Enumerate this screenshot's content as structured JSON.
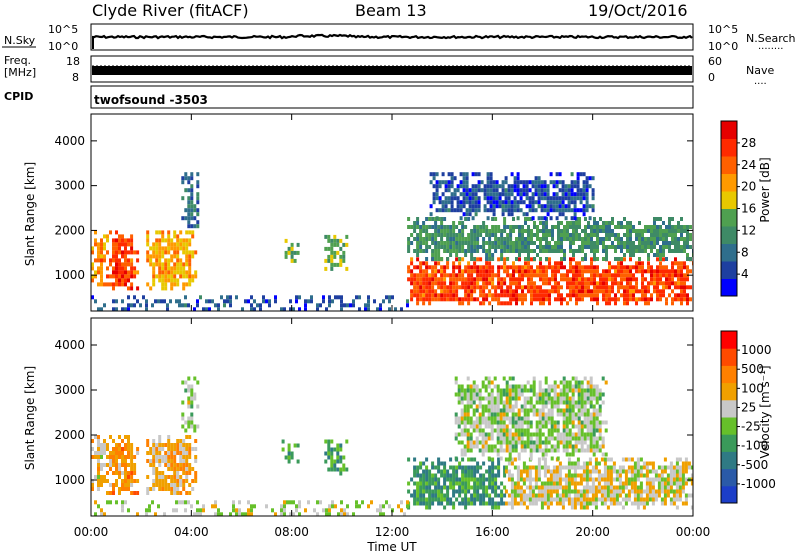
{
  "header": {
    "station": "Clyde River (fitACF)",
    "beam": "Beam 13",
    "date": "19/Oct/2016"
  },
  "strips": {
    "nsky": {
      "label": "N.Sky",
      "ticks_left": [
        "10^5",
        "10^0"
      ],
      "ticks_right": [
        "10^5",
        "10^0"
      ],
      "right_label": "N.Search",
      "right_dots": "........"
    },
    "freq": {
      "label_top": "Freq.",
      "label_unit": "[MHz]",
      "ticks_left": [
        "18",
        "8"
      ],
      "ticks_right": [
        "60",
        "0"
      ],
      "right_label": "Nave",
      "right_dots": "...."
    },
    "cpid": {
      "label": "CPID",
      "program": "twofsound  -3503"
    }
  },
  "colors": {
    "power": [
      "#0000ff",
      "#1e3fa0",
      "#2f6e8c",
      "#3e8a66",
      "#4fa050",
      "#e8c800",
      "#ff9a00",
      "#ff6000",
      "#ff2a00",
      "#e60000"
    ],
    "velocity": [
      "#1c3ec8",
      "#2a5aa8",
      "#2f7a84",
      "#3a9a5a",
      "#66c02a",
      "#c8c8c8",
      "#f0a000",
      "#ff8000",
      "#ff4a00",
      "#ff0000"
    ]
  },
  "chart_data": [
    {
      "type": "heatmap",
      "title": "Power",
      "xlabel": "",
      "ylabel": "Slant Range [km]",
      "x_ticks": [
        "00:00",
        "04:00",
        "08:00",
        "12:00",
        "16:00",
        "20:00",
        "00:00"
      ],
      "y_ticks": [
        "1000",
        "2000",
        "3000",
        "4000"
      ],
      "ylim": [
        200,
        4600
      ],
      "colorbar": {
        "label": "Power [dB]",
        "ticks": [
          "4",
          "8",
          "12",
          "16",
          "20",
          "24",
          "28"
        ],
        "range": [
          0,
          32
        ]
      },
      "echo_regions": [
        {
          "t": [
            0.0,
            0.6
          ],
          "r": [
            800,
            2000
          ],
          "v": 22
        },
        {
          "t": [
            0.6,
            1.8
          ],
          "r": [
            700,
            2000
          ],
          "v": 26
        },
        {
          "t": [
            2.2,
            4.2
          ],
          "r": [
            700,
            2000
          ],
          "v": 20
        },
        {
          "t": [
            3.6,
            4.3
          ],
          "r": [
            2100,
            3300
          ],
          "v": 8
        },
        {
          "t": [
            7.6,
            8.2
          ],
          "r": [
            1300,
            1900
          ],
          "v": 14
        },
        {
          "t": [
            9.3,
            10.2
          ],
          "r": [
            1100,
            1900
          ],
          "v": 14
        },
        {
          "t": [
            12.6,
            24.0
          ],
          "r": [
            350,
            1400
          ],
          "v": 26
        },
        {
          "t": [
            12.6,
            24.0
          ],
          "r": [
            1400,
            2300
          ],
          "v": 12
        },
        {
          "t": [
            13.5,
            20.0
          ],
          "r": [
            2300,
            3300
          ],
          "v": 6
        },
        {
          "t": [
            0.0,
            12.6
          ],
          "r": [
            250,
            550
          ],
          "v": 6
        }
      ]
    },
    {
      "type": "heatmap",
      "title": "Velocity",
      "xlabel": "Time UT",
      "ylabel": "Slant Range [km]",
      "x_ticks": [
        "00:00",
        "04:00",
        "08:00",
        "12:00",
        "16:00",
        "20:00",
        "00:00"
      ],
      "y_ticks": [
        "1000",
        "2000",
        "3000",
        "4000"
      ],
      "ylim": [
        200,
        4600
      ],
      "colorbar": {
        "label": "Velocity [m s⁻¹]",
        "ticks": [
          "1000",
          "500",
          "100",
          "25",
          "-25",
          "-100",
          "-500",
          "-1000"
        ],
        "range": [
          -1500,
          1500
        ]
      },
      "echo_regions": [
        {
          "t": [
            0.0,
            0.6
          ],
          "r": [
            800,
            2000
          ],
          "v": 300
        },
        {
          "t": [
            0.6,
            1.8
          ],
          "r": [
            700,
            2000
          ],
          "v": 600
        },
        {
          "t": [
            2.2,
            4.2
          ],
          "r": [
            700,
            2000
          ],
          "v": 400
        },
        {
          "t": [
            3.6,
            4.3
          ],
          "r": [
            2100,
            3300
          ],
          "v": 0
        },
        {
          "t": [
            7.6,
            8.2
          ],
          "r": [
            1300,
            1900
          ],
          "v": -300
        },
        {
          "t": [
            9.3,
            10.2
          ],
          "r": [
            1100,
            1900
          ],
          "v": -350
        },
        {
          "t": [
            12.6,
            16.5
          ],
          "r": [
            350,
            1500
          ],
          "v": -500
        },
        {
          "t": [
            16.5,
            24.0
          ],
          "r": [
            350,
            1500
          ],
          "v": 200
        },
        {
          "t": [
            14.5,
            20.5
          ],
          "r": [
            1500,
            3300
          ],
          "v": 0
        },
        {
          "t": [
            0.0,
            12.6
          ],
          "r": [
            250,
            550
          ],
          "v": 60
        }
      ]
    }
  ]
}
